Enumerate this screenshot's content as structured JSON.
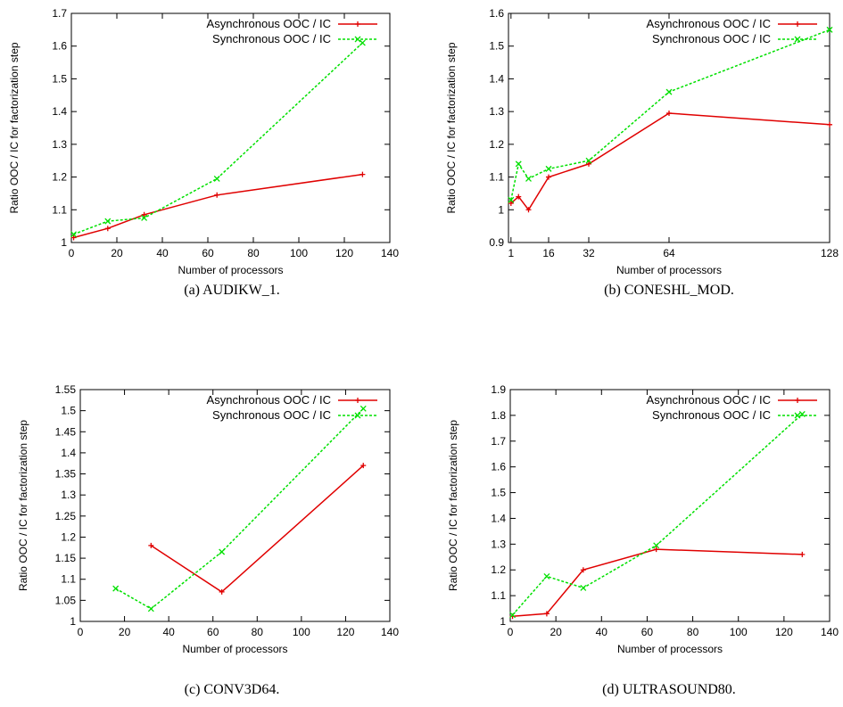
{
  "colors": {
    "async": "#e00000",
    "sync": "#00e000",
    "axis": "#000000"
  },
  "chart_data": [
    {
      "type": "line",
      "caption": "(a) AUDIKW_1.",
      "xlabel": "Number of processors",
      "ylabel": "Ratio OOC / IC for factorization step",
      "xlim": [
        0,
        140
      ],
      "ylim": [
        1,
        1.7
      ],
      "xticks": [
        0,
        20,
        40,
        60,
        80,
        100,
        120,
        140
      ],
      "xtick_labels": [
        "0",
        "20",
        "40",
        "60",
        "80",
        "100",
        "120",
        "140"
      ],
      "yticks": [
        1,
        1.1,
        1.2,
        1.3,
        1.4,
        1.5,
        1.6,
        1.7
      ],
      "ytick_labels": [
        "1",
        "1.1",
        "1.2",
        "1.3",
        "1.4",
        "1.5",
        "1.6",
        "1.7"
      ],
      "legend": "top-right",
      "series": [
        {
          "name": "Asynchronous OOC / IC",
          "style": "solid",
          "color": "#e00000",
          "x": [
            1,
            16,
            32,
            64,
            128
          ],
          "y": [
            1.015,
            1.043,
            1.085,
            1.145,
            1.208
          ]
        },
        {
          "name": "Synchronous OOC / IC",
          "style": "dashed",
          "color": "#00e000",
          "x": [
            1,
            16,
            32,
            64,
            128
          ],
          "y": [
            1.025,
            1.065,
            1.075,
            1.195,
            1.61
          ]
        }
      ]
    },
    {
      "type": "line",
      "caption": "(b) CONESHL_MOD.",
      "xlabel": "Number of processors",
      "ylabel": "Ratio OOC / IC for factorization step",
      "xlim": [
        0,
        128
      ],
      "ylim": [
        0.9,
        1.6
      ],
      "xticks": [
        1,
        16,
        32,
        64,
        128
      ],
      "xtick_labels": [
        "1",
        "16",
        "32",
        "64",
        "128"
      ],
      "yticks": [
        0.9,
        1.0,
        1.1,
        1.2,
        1.3,
        1.4,
        1.5,
        1.6
      ],
      "ytick_labels": [
        "0.9",
        "1",
        "1.1",
        "1.2",
        "1.3",
        "1.4",
        "1.5",
        "1.6"
      ],
      "legend": "top-right",
      "series": [
        {
          "name": "Asynchronous OOC / IC",
          "style": "solid",
          "color": "#e00000",
          "x": [
            1,
            4,
            8,
            16,
            32,
            64,
            128
          ],
          "y": [
            1.02,
            1.04,
            1.0,
            1.1,
            1.14,
            1.295,
            1.26
          ]
        },
        {
          "name": "Synchronous OOC / IC",
          "style": "dashed",
          "color": "#00e000",
          "x": [
            1,
            4,
            8,
            16,
            32,
            64,
            128
          ],
          "y": [
            1.03,
            1.14,
            1.095,
            1.125,
            1.15,
            1.36,
            1.55
          ]
        }
      ]
    },
    {
      "type": "line",
      "caption": "(c) CONV3D64.",
      "xlabel": "Number of processors",
      "ylabel": "Ratio OOC / IC for factorization step",
      "xlim": [
        0,
        140
      ],
      "ylim": [
        1,
        1.55
      ],
      "xticks": [
        0,
        20,
        40,
        60,
        80,
        100,
        120,
        140
      ],
      "xtick_labels": [
        "0",
        "20",
        "40",
        "60",
        "80",
        "100",
        "120",
        "140"
      ],
      "yticks": [
        1,
        1.05,
        1.1,
        1.15,
        1.2,
        1.25,
        1.3,
        1.35,
        1.4,
        1.45,
        1.5,
        1.55
      ],
      "ytick_labels": [
        "1",
        "1.05",
        "1.1",
        "1.15",
        "1.2",
        "1.25",
        "1.3",
        "1.35",
        "1.4",
        "1.45",
        "1.5",
        "1.55"
      ],
      "legend": "top-right",
      "series": [
        {
          "name": "Asynchronous OOC / IC",
          "style": "solid",
          "color": "#e00000",
          "x": [
            32,
            64,
            128
          ],
          "y": [
            1.18,
            1.07,
            1.37
          ]
        },
        {
          "name": "Synchronous OOC / IC",
          "style": "dashed",
          "color": "#00e000",
          "x": [
            16,
            32,
            64,
            128
          ],
          "y": [
            1.078,
            1.03,
            1.165,
            1.505
          ]
        }
      ]
    },
    {
      "type": "line",
      "caption": "(d) ULTRASOUND80.",
      "xlabel": "Number of processors",
      "ylabel": "Ratio OOC / IC for factorization step",
      "xlim": [
        0,
        140
      ],
      "ylim": [
        1,
        1.9
      ],
      "xticks": [
        0,
        20,
        40,
        60,
        80,
        100,
        120,
        140
      ],
      "xtick_labels": [
        "0",
        "20",
        "40",
        "60",
        "80",
        "100",
        "120",
        "140"
      ],
      "yticks": [
        1,
        1.1,
        1.2,
        1.3,
        1.4,
        1.5,
        1.6,
        1.7,
        1.8,
        1.9
      ],
      "ytick_labels": [
        "1",
        "1.1",
        "1.2",
        "1.3",
        "1.4",
        "1.5",
        "1.6",
        "1.7",
        "1.8",
        "1.9"
      ],
      "legend": "top-right",
      "series": [
        {
          "name": "Asynchronous OOC / IC",
          "style": "solid",
          "color": "#e00000",
          "x": [
            1,
            16,
            32,
            64,
            128
          ],
          "y": [
            1.02,
            1.03,
            1.2,
            1.28,
            1.26
          ]
        },
        {
          "name": "Synchronous OOC / IC",
          "style": "dashed",
          "color": "#00e000",
          "x": [
            1,
            16,
            32,
            64,
            128
          ],
          "y": [
            1.025,
            1.175,
            1.13,
            1.295,
            1.805
          ]
        }
      ]
    }
  ]
}
